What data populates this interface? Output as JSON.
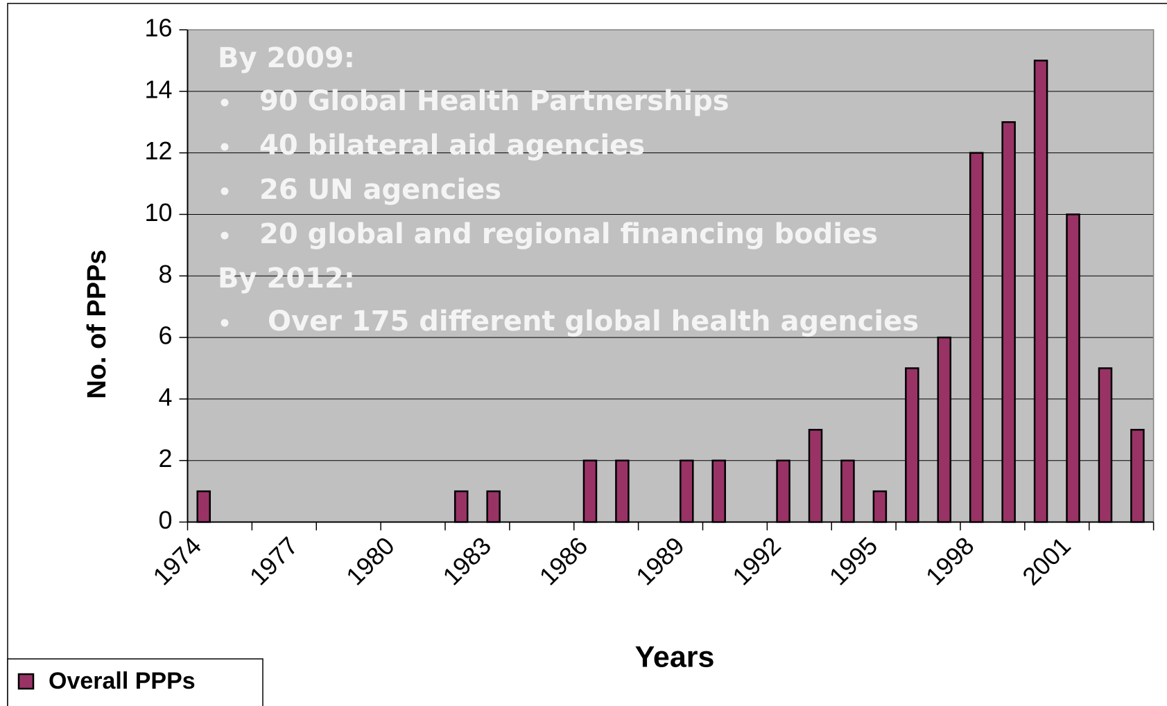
{
  "chart_data": {
    "type": "bar",
    "categories": [
      "1974",
      null,
      null,
      "1977",
      null,
      null,
      "1980",
      null,
      null,
      "1983",
      null,
      null,
      "1986",
      null,
      null,
      "1989",
      null,
      null,
      "1992",
      null,
      null,
      "1995",
      null,
      null,
      "1998",
      null,
      null,
      "2001",
      null,
      null
    ],
    "series": [
      {
        "name": "Overall PPPs",
        "color": "#993366",
        "values": [
          1,
          0,
          0,
          0,
          0,
          0,
          0,
          0,
          1,
          1,
          0,
          0,
          2,
          2,
          0,
          2,
          2,
          0,
          2,
          3,
          2,
          1,
          5,
          6,
          12,
          13,
          15,
          10,
          5,
          3
        ]
      }
    ],
    "ylim": [
      0,
      16
    ],
    "yticks": [
      0,
      2,
      4,
      6,
      8,
      10,
      12,
      14,
      16
    ],
    "grid": true,
    "xlabel": "Years",
    "ylabel": "No. of PPPs",
    "legend": "bottom-left",
    "annotation": [
      {
        "heading": "By 2009:",
        "items": [
          "90 Global Health Partnerships",
          "40 bilateral aid agencies",
          "26 UN agencies",
          "20 global and regional financing bodies"
        ]
      },
      {
        "heading": "By 2012:",
        "items": [
          "Over 175 different global health agencies"
        ]
      }
    ]
  }
}
